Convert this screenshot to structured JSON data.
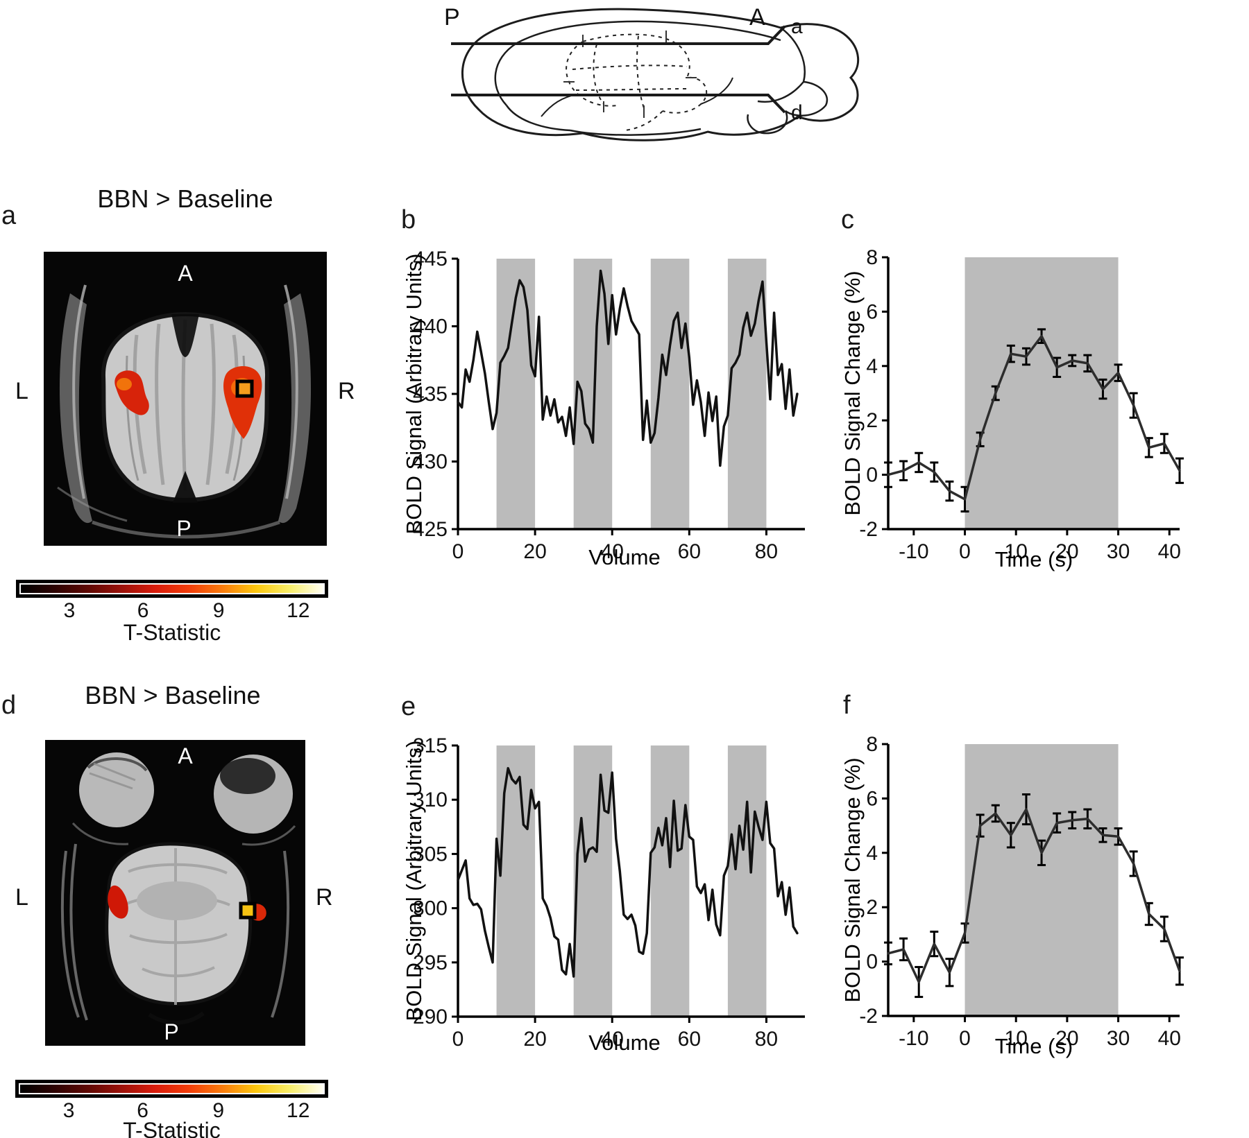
{
  "diagram": {
    "posterior": "P",
    "anterior": "A",
    "slice_line_upper_label": "a",
    "slice_line_lower_label": "d"
  },
  "panels": {
    "a": {
      "letter": "a",
      "title": "BBN > Baseline",
      "top": "A",
      "bottom": "P",
      "left": "L",
      "right": "R"
    },
    "b": {
      "letter": "b"
    },
    "c": {
      "letter": "c"
    },
    "d": {
      "letter": "d",
      "title": "BBN > Baseline",
      "top": "A",
      "bottom": "P",
      "left": "L",
      "right": "R"
    },
    "e": {
      "letter": "e"
    },
    "f": {
      "letter": "f"
    }
  },
  "colorbar": {
    "ticks": [
      "3",
      "6",
      "9",
      "12"
    ],
    "tick_positions_pct": [
      17.1,
      40.7,
      64.9,
      90.4
    ],
    "label": "T-Statistic",
    "stops": [
      "#000000",
      "#2c0302",
      "#5e0803",
      "#9b120a",
      "#d91c0c",
      "#f23d0a",
      "#f97c0d",
      "#fbc70f",
      "#f8ee6a",
      "#fffef5"
    ]
  },
  "colors": {
    "stim_block": "#bbbbbb",
    "trace_black": "#111111",
    "trace_gray": "#2d2d2d",
    "activation_red": "#d7230a",
    "activation_orange": "#f56a0a",
    "activation_yellow": "#f5c212"
  },
  "chart_data": [
    {
      "id": "b",
      "type": "line",
      "xlabel": "Volume",
      "ylabel": "BOLD Signal (Arbitrary Units)",
      "xlim": [
        0,
        90
      ],
      "ylim": [
        425,
        445
      ],
      "xticks": [
        0,
        20,
        40,
        60,
        80
      ],
      "yticks": [
        425,
        430,
        435,
        440,
        445
      ],
      "stim_blocks": [
        [
          10,
          20
        ],
        [
          30,
          40
        ],
        [
          50,
          60
        ],
        [
          70,
          80
        ]
      ],
      "x_start": 0,
      "x_step": 1,
      "values": [
        434.4,
        434.0,
        436.8,
        435.9,
        437.5,
        439.6,
        438.1,
        436.5,
        434.4,
        432.4,
        433.6,
        437.3,
        437.8,
        438.4,
        440.3,
        442.1,
        443.4,
        442.9,
        441.2,
        437.1,
        436.3,
        440.7,
        433.1,
        434.8,
        433.4,
        434.6,
        432.9,
        433.3,
        431.9,
        434.0,
        431.3,
        435.9,
        435.2,
        432.8,
        432.4,
        431.4,
        440.0,
        444.1,
        442.4,
        438.7,
        442.3,
        439.4,
        441.3,
        442.8,
        441.5,
        440.4,
        439.9,
        439.4,
        431.6,
        434.5,
        431.4,
        432.1,
        434.7,
        437.9,
        436.4,
        438.6,
        440.4,
        441.0,
        438.4,
        440.2,
        437.7,
        434.2,
        436.0,
        434.4,
        431.9,
        435.1,
        433.0,
        434.8,
        429.7,
        432.6,
        433.4,
        436.9,
        437.3,
        437.9,
        439.9,
        441.0,
        439.3,
        440.2,
        441.9,
        443.3,
        438.9,
        434.6,
        441.0,
        436.4,
        437.2,
        433.9,
        436.8,
        433.4,
        435.0
      ]
    },
    {
      "id": "c",
      "type": "line+errorbar",
      "xlabel": "Time (s)",
      "ylabel": "BOLD Signal Change (%)",
      "xlim": [
        -15,
        42
      ],
      "ylim": [
        -2,
        8
      ],
      "xticks": [
        -10,
        0,
        10,
        20,
        30,
        40
      ],
      "yticks": [
        -2,
        0,
        2,
        4,
        6,
        8
      ],
      "stim_blocks": [
        [
          0,
          30
        ]
      ],
      "x": [
        -15,
        -12,
        -9,
        -6,
        -3,
        0,
        3,
        6,
        9,
        12,
        15,
        18,
        21,
        24,
        27,
        30,
        33,
        36,
        39,
        42
      ],
      "values": [
        0.0,
        0.15,
        0.45,
        0.1,
        -0.6,
        -0.9,
        1.3,
        3.0,
        4.45,
        4.35,
        5.1,
        3.95,
        4.2,
        4.1,
        3.15,
        3.75,
        2.55,
        1.0,
        1.15,
        0.15
      ],
      "errors": [
        0.45,
        0.35,
        0.35,
        0.35,
        0.35,
        0.45,
        0.25,
        0.25,
        0.3,
        0.3,
        0.25,
        0.35,
        0.2,
        0.3,
        0.35,
        0.3,
        0.45,
        0.35,
        0.35,
        0.45
      ]
    },
    {
      "id": "e",
      "type": "line",
      "xlabel": "Volume",
      "ylabel": "BOLD Signal (Arbitrary Units)",
      "xlim": [
        0,
        90
      ],
      "ylim": [
        290,
        315
      ],
      "xticks": [
        0,
        20,
        40,
        60,
        80
      ],
      "yticks": [
        290,
        295,
        300,
        305,
        310,
        315
      ],
      "stim_blocks": [
        [
          10,
          20
        ],
        [
          30,
          40
        ],
        [
          50,
          60
        ],
        [
          70,
          80
        ]
      ],
      "x_start": 0,
      "x_step": 1,
      "values": [
        302.6,
        303.5,
        304.4,
        300.9,
        300.3,
        300.4,
        299.9,
        297.9,
        296.4,
        295.0,
        306.4,
        303.0,
        310.6,
        312.9,
        311.9,
        311.5,
        312.1,
        307.7,
        307.3,
        310.9,
        309.2,
        309.8,
        300.9,
        300.2,
        299.1,
        297.4,
        297.1,
        294.3,
        293.9,
        296.7,
        293.7,
        305.0,
        308.3,
        304.3,
        305.4,
        305.6,
        305.2,
        312.3,
        309.0,
        308.8,
        312.5,
        306.4,
        303.4,
        299.4,
        299.0,
        299.4,
        298.4,
        296.0,
        295.8,
        297.7,
        305.1,
        305.6,
        307.4,
        305.8,
        308.3,
        303.8,
        309.9,
        305.3,
        305.5,
        309.5,
        306.6,
        306.3,
        302.0,
        301.4,
        302.2,
        298.9,
        301.7,
        298.5,
        297.5,
        303.0,
        303.9,
        306.8,
        303.6,
        307.6,
        305.4,
        309.8,
        303.3,
        308.9,
        307.5,
        306.3,
        309.8,
        306.0,
        305.5,
        301.1,
        302.4,
        299.4,
        301.9,
        298.3,
        297.7
      ]
    },
    {
      "id": "f",
      "type": "line+errorbar",
      "xlabel": "Time (s)",
      "ylabel": "BOLD Signal Change (%)",
      "xlim": [
        -15,
        42
      ],
      "ylim": [
        -2,
        8
      ],
      "xticks": [
        -10,
        0,
        10,
        20,
        30,
        40
      ],
      "yticks": [
        -2,
        0,
        2,
        4,
        6,
        8
      ],
      "stim_blocks": [
        [
          0,
          30
        ]
      ],
      "x": [
        -15,
        -12,
        -9,
        -6,
        -3,
        0,
        3,
        6,
        9,
        12,
        15,
        18,
        21,
        24,
        27,
        30,
        33,
        36,
        39,
        42
      ],
      "values": [
        0.3,
        0.45,
        -0.75,
        0.65,
        -0.4,
        1.05,
        5.0,
        5.45,
        4.65,
        5.6,
        4.0,
        5.1,
        5.2,
        5.25,
        4.65,
        4.6,
        3.6,
        1.75,
        1.2,
        -0.35
      ],
      "errors": [
        0.4,
        0.4,
        0.55,
        0.45,
        0.5,
        0.35,
        0.4,
        0.3,
        0.45,
        0.55,
        0.45,
        0.35,
        0.3,
        0.35,
        0.25,
        0.3,
        0.45,
        0.4,
        0.45,
        0.5
      ]
    }
  ]
}
